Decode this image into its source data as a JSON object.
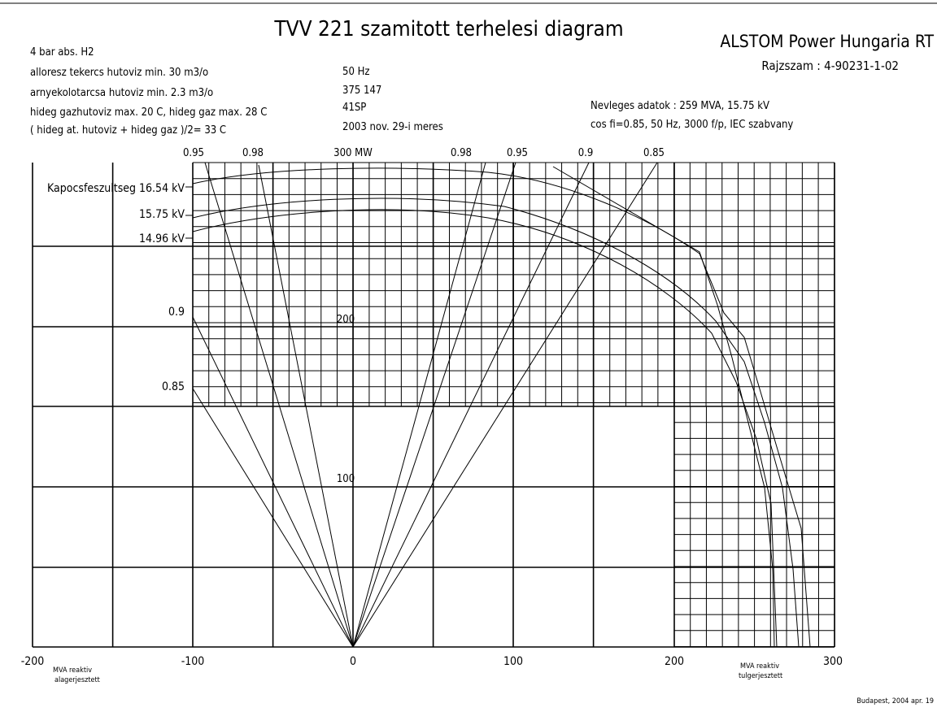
{
  "title": "TVV 221 szamitott terhelesi diagram",
  "company": "ALSTOM Power Hungaria RT",
  "drawing_number": "Rajzszam : 4-90231-1-02",
  "notes_left": [
    "4 bar abs. H2",
    "alloresz tekercs hutoviz min. 30 m3/o",
    "arnyekolotarcsa hutoviz min. 2.3 m3/o",
    "hideg gazhutoviz max. 20 C,  hideg gaz max. 28 C",
    "( hideg at. hutoviz + hideg gaz )/2= 33 C"
  ],
  "notes_middle": [
    "50 Hz",
    "375 147",
    "41SP",
    "2003 nov. 29-i meres"
  ],
  "rated_data": [
    "Nevleges adatok : 259 MVA, 15.75 kV",
    "cos fi=0.85, 50 Hz, 3000 f/p, IEC szabvany"
  ],
  "top_labels": [
    "0.95",
    "0.98",
    "300 MW",
    "0.98",
    "0.95",
    "0.9",
    "0.85"
  ],
  "side_labels": [
    "Kapocsfeszultseg 16.54 kV",
    "15.75 kV",
    "14.96 kV",
    "0.9",
    "0.85"
  ],
  "y_labels": [
    "200",
    "100"
  ],
  "x_labels": [
    "-200",
    "-100",
    "0",
    "100",
    "200",
    "300"
  ],
  "axis_notes": {
    "left": [
      "MVA reaktiv",
      "alagerjesztett"
    ],
    "right": [
      "MVA reaktiv",
      "tulgerjesztett"
    ]
  },
  "footer": "Budapest, 2004 apr. 19"
}
